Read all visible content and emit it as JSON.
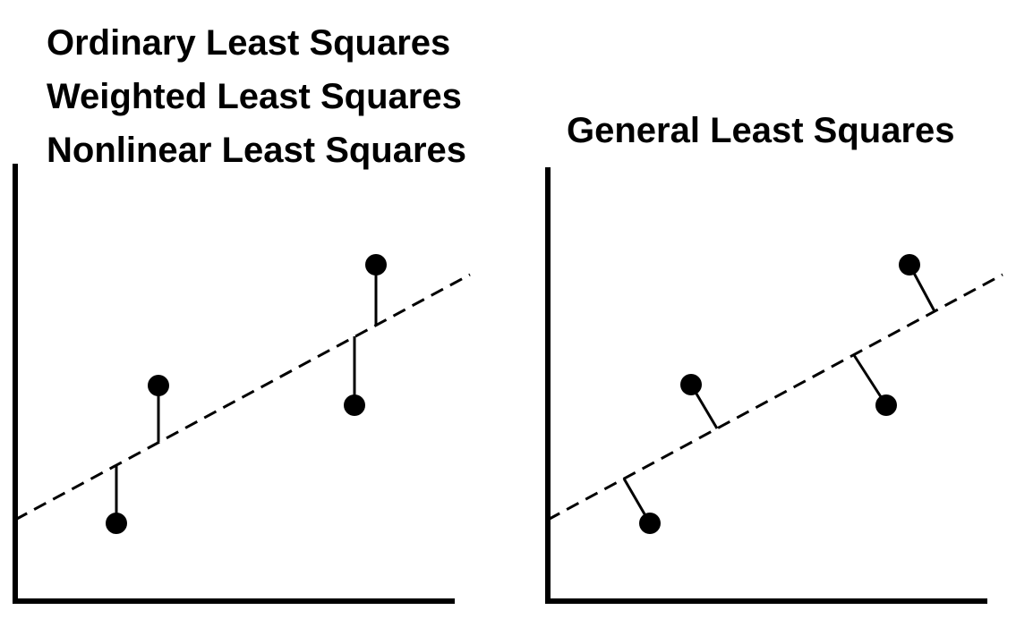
{
  "left_panel": {
    "titles": [
      "Ordinary Least Squares",
      "Weighted Least Squares",
      "Nonlinear Least Squares"
    ]
  },
  "right_panel": {
    "title": "General Least Squares"
  },
  "colors": {
    "ink": "#000000",
    "background": "#ffffff"
  }
}
